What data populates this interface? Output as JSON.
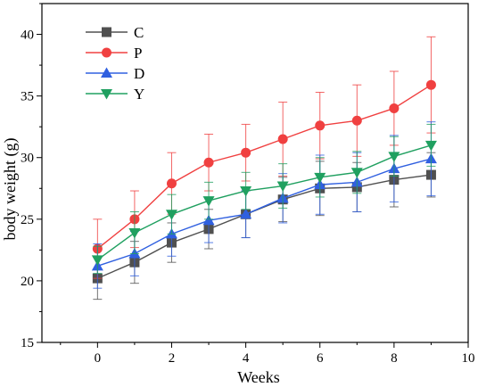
{
  "chart_data": {
    "type": "line",
    "xlabel": "Weeks",
    "ylabel": "body weight (g)",
    "xlim": [
      -1.5,
      10
    ],
    "ylim": [
      15,
      42.5
    ],
    "xticks": [
      0,
      2,
      4,
      6,
      8,
      10
    ],
    "yticks": [
      15,
      20,
      25,
      30,
      35,
      40
    ],
    "grid": false,
    "legend_position": "top-left",
    "x": [
      0,
      1,
      2,
      3,
      4,
      5,
      6,
      7,
      8,
      9
    ],
    "series": [
      {
        "name": "C",
        "color": "#505050",
        "marker": "square",
        "values": [
          20.2,
          21.5,
          23.1,
          24.2,
          25.4,
          26.6,
          27.5,
          27.6,
          28.2,
          28.6
        ],
        "errors": [
          1.7,
          1.7,
          1.6,
          1.6,
          1.9,
          1.8,
          2.2,
          2.0,
          2.2,
          1.8
        ]
      },
      {
        "name": "P",
        "color": "#f04040",
        "marker": "circle",
        "values": [
          22.6,
          25.0,
          27.9,
          29.6,
          30.4,
          31.5,
          32.6,
          33.0,
          34.0,
          35.9
        ],
        "errors": [
          2.4,
          2.3,
          2.5,
          2.3,
          2.3,
          3.0,
          2.7,
          2.9,
          3.0,
          3.9
        ]
      },
      {
        "name": "D",
        "color": "#3060e0",
        "marker": "triangle-up",
        "values": [
          21.2,
          22.2,
          23.8,
          24.9,
          25.4,
          26.7,
          27.8,
          28.0,
          29.1,
          29.9
        ],
        "errors": [
          1.8,
          1.8,
          1.8,
          1.8,
          1.9,
          2.0,
          2.4,
          2.4,
          2.7,
          3.0
        ]
      },
      {
        "name": "Y",
        "color": "#20a060",
        "marker": "triangle-down",
        "values": [
          21.7,
          23.9,
          25.4,
          26.5,
          27.3,
          27.7,
          28.4,
          28.8,
          30.1,
          31.0
        ],
        "errors": [
          1.1,
          1.7,
          1.6,
          1.5,
          1.5,
          1.8,
          1.6,
          1.7,
          1.6,
          1.7
        ]
      }
    ]
  }
}
